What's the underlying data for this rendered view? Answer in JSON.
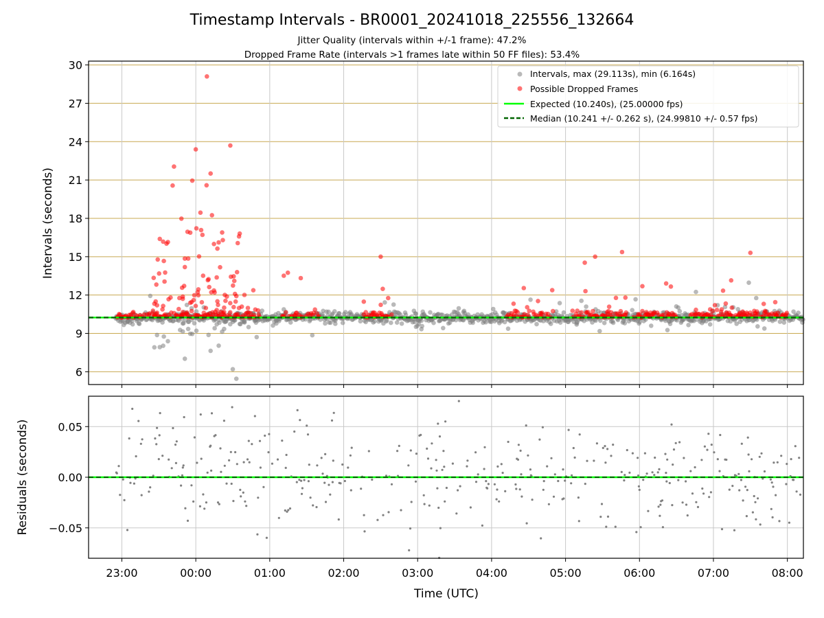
{
  "title": "Timestamp Intervals - BR0001_20241018_225556_132664",
  "subtitle1": "Jitter Quality (intervals within +/-1 frame): 47.2%",
  "subtitle2": "Dropped Frame Rate (intervals >1 frames late within 50 FF files): 53.4%",
  "colors": {
    "intervals": "#808080",
    "dropped": "#ff0000",
    "expected": "#00ff00",
    "median": "#006400",
    "hgrid": "#c8a850",
    "vgrid": "#c8c8c8"
  },
  "chart_data": [
    {
      "type": "scatter",
      "panel": "intervals",
      "ylabel": "Intervals (seconds)",
      "xlabel": "",
      "xlim": [
        "22:33",
        "08:13"
      ],
      "ylim": [
        5.0,
        30.3
      ],
      "yticks": [
        "6",
        "9",
        "12",
        "15",
        "18",
        "21",
        "24",
        "27",
        "30"
      ],
      "xticks": [
        "23:00",
        "00:00",
        "01:00",
        "02:00",
        "03:00",
        "04:00",
        "05:00",
        "06:00",
        "07:00",
        "08:00"
      ],
      "grid": "horizontal gold, vertical gray",
      "legend_position": "top-right",
      "legend": [
        "Intervals, max (29.113s), min (6.164s)",
        "Possible Dropped Frames",
        "Expected (10.240s), (25.00000 fps)",
        "Median (10.241 +/- 0.262 s), (24.99810 +/- 0.57 fps)"
      ],
      "expected": 10.24,
      "median": 10.241,
      "max": 29.113,
      "min": 6.164,
      "highlighted_points": [
        {
          "x": "00:09",
          "y": 29.1,
          "series": "Possible Dropped Frames"
        },
        {
          "x": "00:28",
          "y": 23.7,
          "series": "Possible Dropped Frames"
        },
        {
          "x": "00:00",
          "y": 23.4,
          "series": "Possible Dropped Frames"
        },
        {
          "x": "02:30",
          "y": 15.0,
          "series": "Possible Dropped Frames"
        },
        {
          "x": "05:24",
          "y": 15.0,
          "series": "Possible Dropped Frames"
        },
        {
          "x": "07:30",
          "y": 15.3,
          "series": "Possible Dropped Frames"
        },
        {
          "x": "00:30",
          "y": 6.2,
          "series": "Intervals, max (29.113s), min (6.164s)"
        }
      ]
    },
    {
      "type": "scatter",
      "panel": "residuals",
      "ylabel": "Residuals (seconds)",
      "xlabel": "Time (UTC)",
      "xlim": [
        "22:33",
        "08:13"
      ],
      "ylim": [
        -0.08,
        0.08
      ],
      "yticks": [
        "0.05",
        "0.00",
        "−0.05"
      ],
      "xticks": [
        "23:00",
        "00:00",
        "01:00",
        "02:00",
        "03:00",
        "04:00",
        "05:00",
        "06:00",
        "07:00",
        "08:00"
      ],
      "grid": "gray",
      "zero_line": 0.0
    }
  ]
}
